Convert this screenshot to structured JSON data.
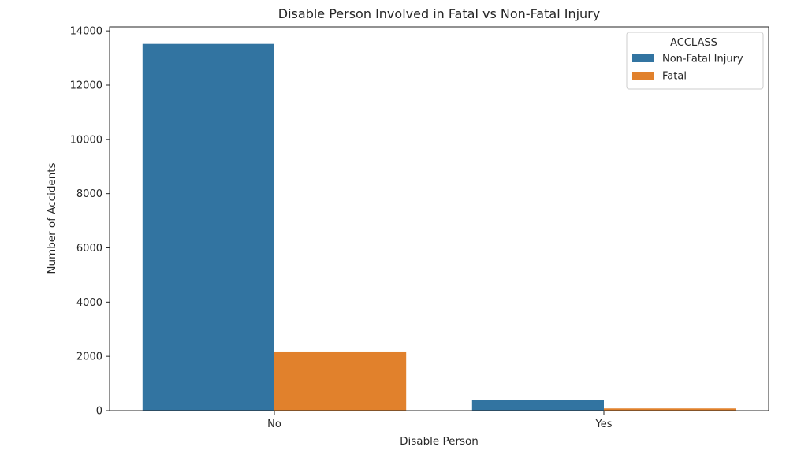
{
  "chart_data": {
    "type": "bar",
    "title": "Disable Person Involved in Fatal vs Non-Fatal Injury",
    "xlabel": "Disable Person",
    "ylabel": "Number of Accidents",
    "categories": [
      "No",
      "Yes"
    ],
    "series": [
      {
        "name": "Non-Fatal Injury",
        "color": "#3274a1",
        "values": [
          13520,
          380
        ]
      },
      {
        "name": "Fatal",
        "color": "#e1812c",
        "values": [
          2180,
          80
        ]
      }
    ],
    "ylim": [
      0,
      14150
    ],
    "yticks": [
      0,
      2000,
      4000,
      6000,
      8000,
      10000,
      12000,
      14000
    ],
    "grid": false,
    "legend": {
      "title": "ACCLASS",
      "placement": "top-right"
    }
  }
}
